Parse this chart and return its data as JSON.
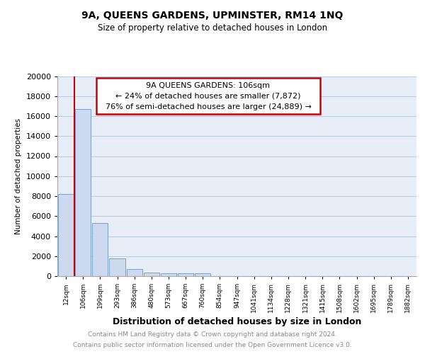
{
  "title1": "9A, QUEENS GARDENS, UPMINSTER, RM14 1NQ",
  "title2": "Size of property relative to detached houses in London",
  "xlabel": "Distribution of detached houses by size in London",
  "ylabel": "Number of detached properties",
  "footer1": "Contains HM Land Registry data © Crown copyright and database right 2024.",
  "footer2": "Contains public sector information licensed under the Open Government Licence v3.0.",
  "annotation_line1": "9A QUEENS GARDENS: 106sqm",
  "annotation_line2": "← 24% of detached houses are smaller (7,872)",
  "annotation_line3": "76% of semi-detached houses are larger (24,889) →",
  "bar_color": "#ccd9ee",
  "bar_edge_color": "#7a9fd4",
  "marker_color": "#cc0000",
  "categories": [
    "12sqm",
    "106sqm",
    "199sqm",
    "293sqm",
    "386sqm",
    "480sqm",
    "573sqm",
    "667sqm",
    "760sqm",
    "854sqm",
    "947sqm",
    "1041sqm",
    "1134sqm",
    "1228sqm",
    "1321sqm",
    "1415sqm",
    "1508sqm",
    "1602sqm",
    "1695sqm",
    "1789sqm",
    "1882sqm"
  ],
  "values": [
    8200,
    16700,
    5300,
    1750,
    700,
    320,
    280,
    270,
    260,
    0,
    0,
    0,
    0,
    0,
    0,
    0,
    0,
    0,
    0,
    0,
    0
  ],
  "ylim": [
    0,
    20000
  ],
  "yticks": [
    0,
    2000,
    4000,
    6000,
    8000,
    10000,
    12000,
    14000,
    16000,
    18000,
    20000
  ],
  "chart_bg": "#e8eef8",
  "grid_color": "#b8c8e0"
}
